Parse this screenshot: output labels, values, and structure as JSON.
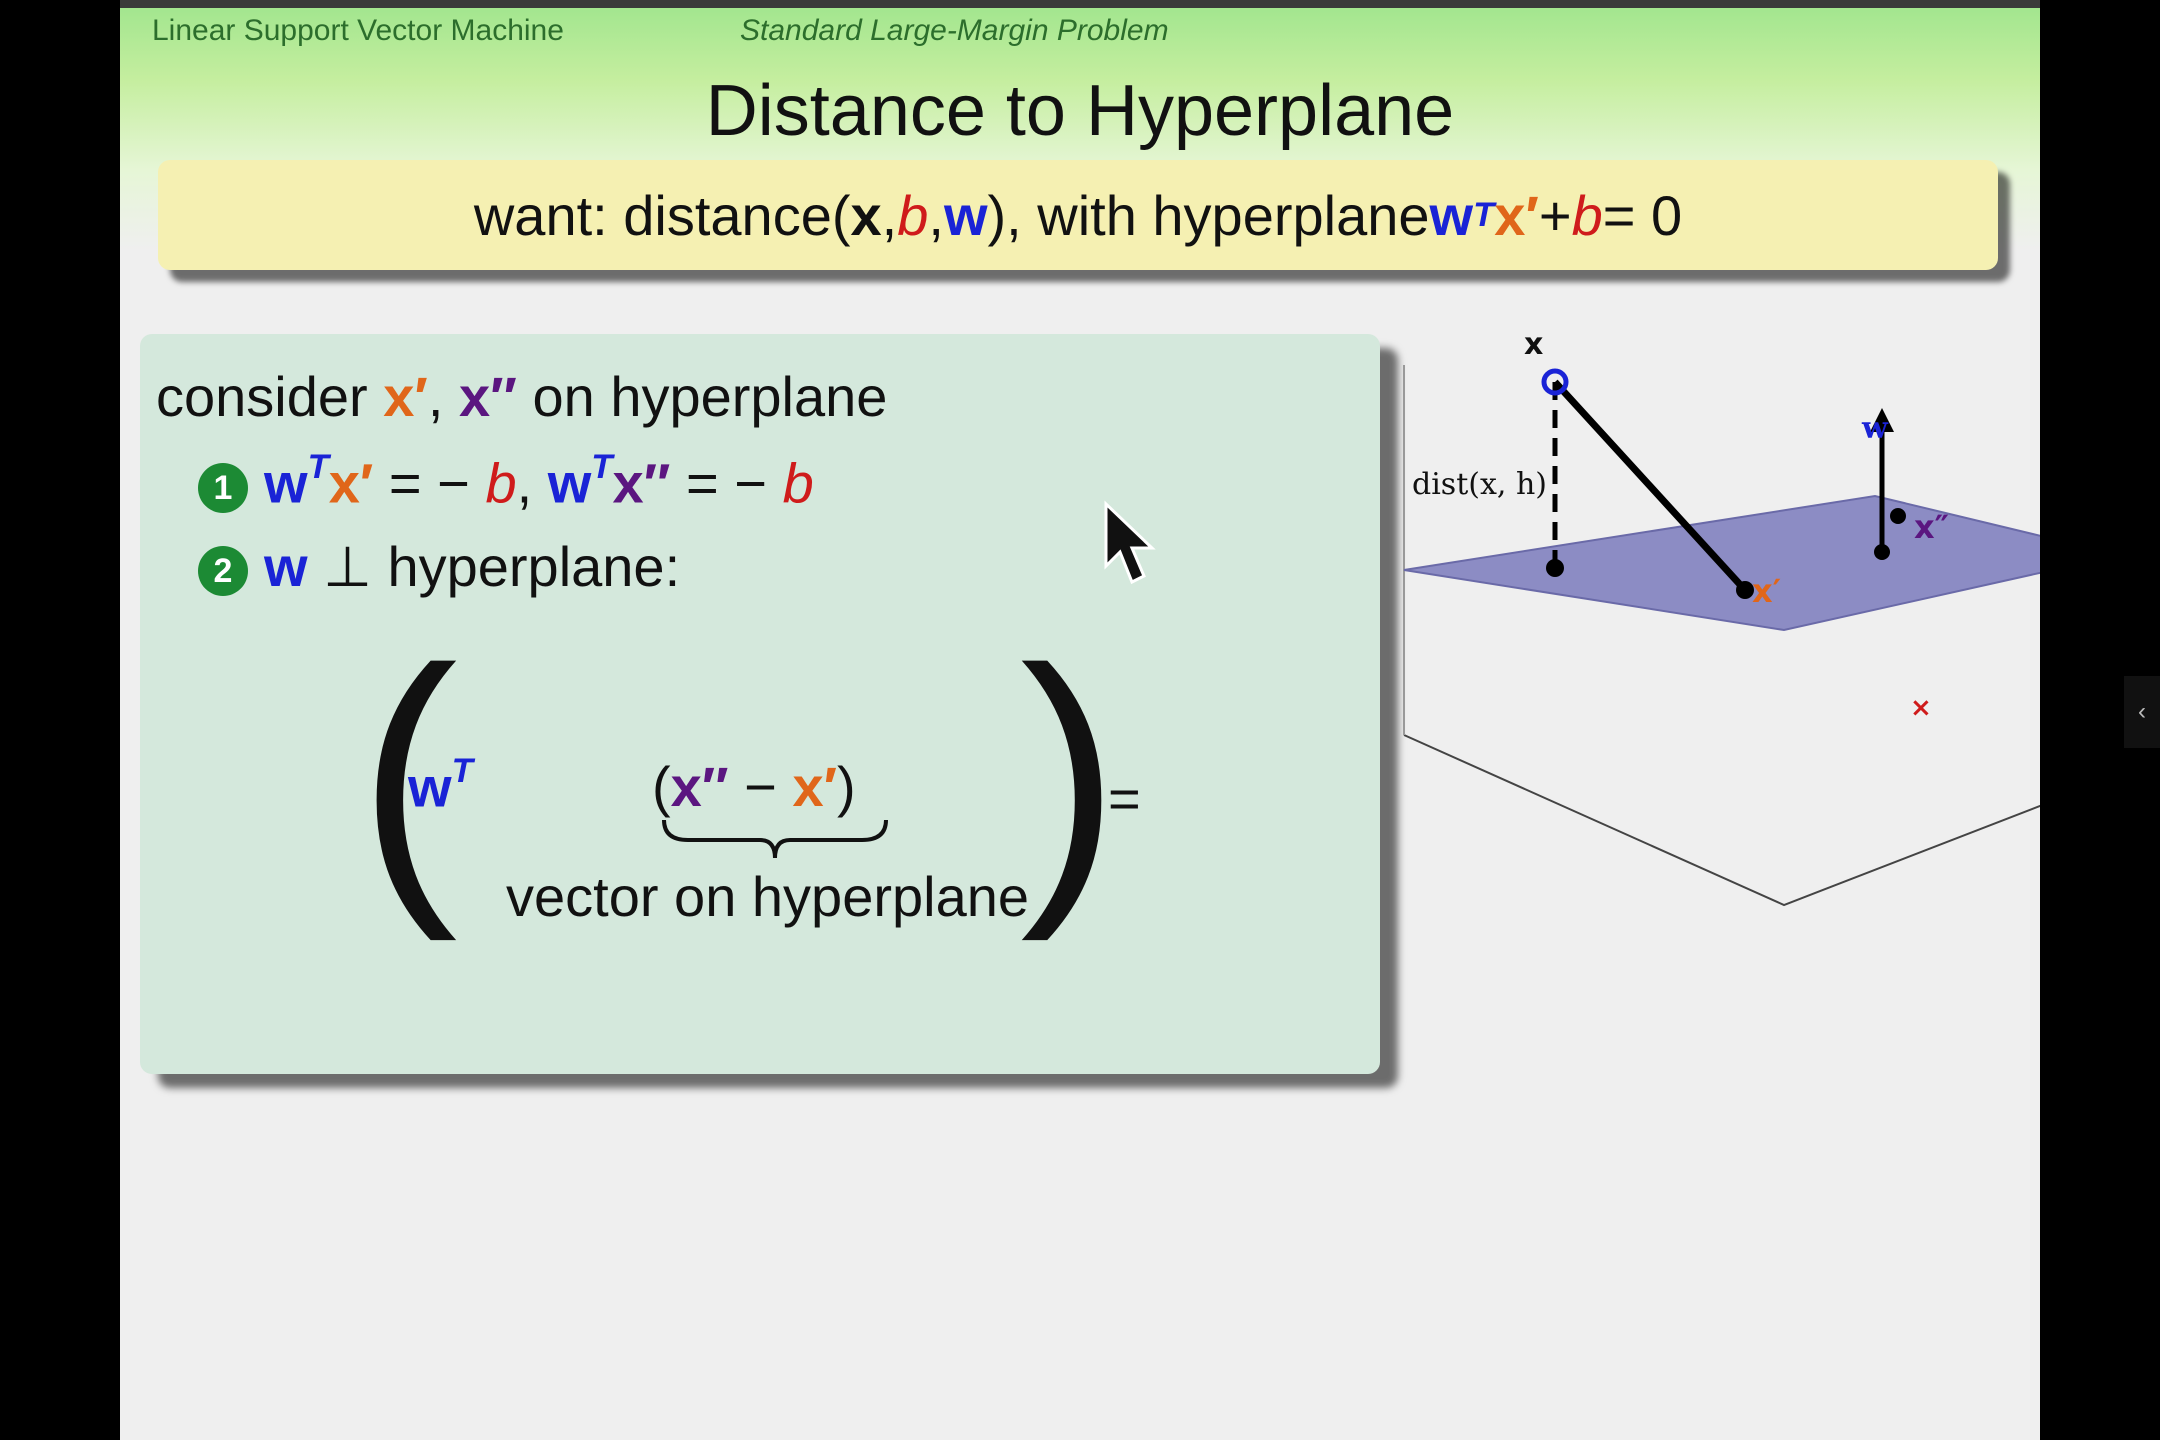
{
  "header": {
    "left": "Linear Support Vector Machine",
    "right": "Standard Large-Margin Problem"
  },
  "title": "Distance to Hyperplane",
  "want": {
    "prefix": "want: distance(",
    "x": "x",
    "sep1": ", ",
    "b": "b",
    "sep2": ", ",
    "w": "w",
    "mid": "), with hyperplane ",
    "w2": "w",
    "T": "T",
    "xp": "x′",
    "plus": " + ",
    "b2": "b",
    "eq": " = 0"
  },
  "consider": {
    "pre": "consider ",
    "xp": "x′",
    "comma": ", ",
    "xpp": "x″",
    "post": " on hyperplane"
  },
  "item1": {
    "num": "1",
    "w1": "w",
    "T1": "T",
    "xp": "x′",
    "eq1": " = − ",
    "b1": "b",
    "comma": ", ",
    "w2": "w",
    "T2": "T",
    "xpp": "x″",
    "eq2": " = − ",
    "b2": "b"
  },
  "item2": {
    "num": "2",
    "w": "w",
    "perp": " ⊥ hyperplane:"
  },
  "formula": {
    "lparen": "(",
    "rparen": ")",
    "w": "w",
    "T": "T",
    "open": "(",
    "xpp": "x″",
    "minus": " − ",
    "xp": "x′",
    "close": ")",
    "under": "vector on hyperplane",
    "eq": "="
  },
  "figure": {
    "x_label": "x",
    "w_label": "w",
    "dist_label": "dist(x, h)",
    "xpp_label": "x″",
    "xp_label": "x′",
    "plane_color": "#8c8cc4"
  },
  "scroll": {
    "glyph": "‹"
  }
}
